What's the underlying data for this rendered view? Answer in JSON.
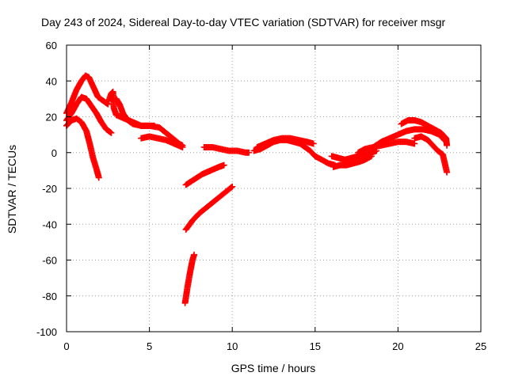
{
  "chart_data": {
    "type": "scatter",
    "title": "Day 243 of 2024, Sidereal Day-to-day VTEC variation (SDTVAR) for receiver msgr",
    "xlabel": "GPS time / hours",
    "ylabel": "SDTVAR / TECUs",
    "xlim": [
      0,
      25
    ],
    "ylim": [
      -100,
      60
    ],
    "xticks": [
      0,
      5,
      10,
      15,
      20,
      25
    ],
    "yticks": [
      -100,
      -80,
      -60,
      -40,
      -20,
      0,
      20,
      40,
      60
    ],
    "grid": true,
    "marker": "+",
    "color": "#ff0000",
    "series": [
      {
        "name": "trace-1",
        "points": [
          [
            0.0,
            22
          ],
          [
            0.3,
            28
          ],
          [
            0.6,
            35
          ],
          [
            0.9,
            40
          ],
          [
            1.15,
            43
          ],
          [
            1.35,
            42
          ],
          [
            1.6,
            37
          ],
          [
            1.9,
            31
          ],
          [
            2.2,
            29
          ],
          [
            2.5,
            27
          ]
        ]
      },
      {
        "name": "trace-2",
        "points": [
          [
            0.0,
            18
          ],
          [
            0.3,
            22
          ],
          [
            0.6,
            27
          ],
          [
            0.9,
            31
          ],
          [
            1.2,
            30
          ],
          [
            1.5,
            26
          ],
          [
            1.8,
            22
          ],
          [
            2.1,
            17
          ],
          [
            2.4,
            13
          ],
          [
            2.7,
            11
          ]
        ]
      },
      {
        "name": "trace-3",
        "points": [
          [
            0.0,
            15
          ],
          [
            0.3,
            18
          ],
          [
            0.6,
            19
          ],
          [
            0.9,
            17
          ],
          [
            1.2,
            12
          ],
          [
            1.4,
            5
          ],
          [
            1.6,
            -3
          ],
          [
            1.8,
            -9
          ],
          [
            1.95,
            -14
          ]
        ]
      },
      {
        "name": "trace-4",
        "points": [
          [
            2.55,
            29
          ],
          [
            2.7,
            33
          ],
          [
            2.8,
            34
          ],
          [
            2.85,
            25
          ],
          [
            3.0,
            21
          ],
          [
            3.5,
            19
          ],
          [
            4.0,
            17
          ],
          [
            4.5,
            15
          ],
          [
            5.0,
            15
          ],
          [
            5.3,
            15
          ]
        ]
      },
      {
        "name": "trace-5",
        "points": [
          [
            3.0,
            30
          ],
          [
            3.2,
            27
          ],
          [
            3.4,
            22
          ],
          [
            3.7,
            18
          ],
          [
            4.0,
            16
          ],
          [
            4.5,
            15
          ],
          [
            5.0,
            15
          ],
          [
            5.6,
            14
          ],
          [
            6.0,
            11
          ],
          [
            6.4,
            8
          ],
          [
            6.8,
            5
          ],
          [
            7.0,
            4
          ]
        ]
      },
      {
        "name": "trace-6",
        "points": [
          [
            4.5,
            8
          ],
          [
            5.0,
            9
          ],
          [
            5.5,
            8
          ],
          [
            6.0,
            7
          ],
          [
            6.5,
            5
          ],
          [
            7.0,
            3
          ]
        ]
      },
      {
        "name": "trace-7",
        "points": [
          [
            7.15,
            -84
          ],
          [
            7.3,
            -75
          ],
          [
            7.45,
            -67
          ],
          [
            7.6,
            -60
          ],
          [
            7.7,
            -57
          ]
        ]
      },
      {
        "name": "trace-8",
        "points": [
          [
            7.2,
            -43
          ],
          [
            7.6,
            -38
          ],
          [
            8.0,
            -34
          ],
          [
            8.4,
            -31
          ],
          [
            8.8,
            -28
          ],
          [
            9.2,
            -25
          ],
          [
            9.6,
            -22
          ],
          [
            10.0,
            -19
          ]
        ]
      },
      {
        "name": "trace-9",
        "points": [
          [
            7.2,
            -18
          ],
          [
            7.7,
            -15
          ],
          [
            8.2,
            -12
          ],
          [
            8.7,
            -10
          ],
          [
            9.2,
            -8
          ],
          [
            9.5,
            -7
          ]
        ]
      },
      {
        "name": "trace-10",
        "points": [
          [
            8.3,
            3
          ],
          [
            8.8,
            3
          ],
          [
            9.3,
            2
          ],
          [
            9.8,
            1
          ],
          [
            10.3,
            1
          ],
          [
            10.8,
            0
          ],
          [
            11.0,
            0
          ]
        ]
      },
      {
        "name": "trace-11",
        "points": [
          [
            11.3,
            1
          ],
          [
            11.7,
            2
          ],
          [
            12.1,
            4
          ],
          [
            12.5,
            6
          ],
          [
            12.9,
            7
          ],
          [
            13.3,
            7
          ],
          [
            13.7,
            6
          ],
          [
            14.1,
            5
          ],
          [
            14.4,
            3
          ],
          [
            14.7,
            1
          ],
          [
            15.0,
            -2
          ],
          [
            15.4,
            -4
          ],
          [
            15.8,
            -6
          ],
          [
            16.2,
            -7
          ]
        ]
      },
      {
        "name": "trace-12",
        "points": [
          [
            11.5,
            3
          ],
          [
            12.0,
            5
          ],
          [
            12.5,
            7
          ],
          [
            13.0,
            8
          ],
          [
            13.5,
            8
          ],
          [
            14.0,
            7
          ],
          [
            14.5,
            6
          ],
          [
            14.9,
            5
          ]
        ]
      },
      {
        "name": "trace-13",
        "points": [
          [
            16.0,
            -2
          ],
          [
            16.4,
            -3
          ],
          [
            16.8,
            -4
          ],
          [
            17.2,
            -3
          ],
          [
            17.6,
            -2
          ],
          [
            18.0,
            -1
          ],
          [
            18.4,
            0
          ],
          [
            18.7,
            1
          ]
        ]
      },
      {
        "name": "trace-14",
        "points": [
          [
            16.1,
            -8
          ],
          [
            16.5,
            -7
          ],
          [
            16.9,
            -7
          ],
          [
            17.3,
            -6
          ],
          [
            17.7,
            -5
          ],
          [
            18.0,
            -4
          ],
          [
            18.4,
            -2
          ]
        ]
      },
      {
        "name": "trace-15",
        "points": [
          [
            17.6,
            0
          ],
          [
            18.0,
            2
          ],
          [
            18.5,
            3
          ],
          [
            19.0,
            4
          ],
          [
            19.5,
            5
          ],
          [
            20.0,
            6
          ],
          [
            20.5,
            6
          ],
          [
            21.0,
            5
          ]
        ]
      },
      {
        "name": "trace-16",
        "points": [
          [
            18.5,
            3
          ],
          [
            19.0,
            6
          ],
          [
            19.5,
            8
          ],
          [
            20.0,
            10
          ],
          [
            20.5,
            12
          ],
          [
            21.0,
            13
          ],
          [
            21.5,
            13
          ],
          [
            22.0,
            12
          ],
          [
            22.5,
            10
          ],
          [
            22.8,
            7
          ]
        ]
      },
      {
        "name": "trace-17",
        "points": [
          [
            20.2,
            16
          ],
          [
            20.6,
            18
          ],
          [
            21.0,
            18
          ],
          [
            21.4,
            17
          ],
          [
            21.8,
            15
          ],
          [
            22.2,
            13
          ],
          [
            22.6,
            11
          ],
          [
            22.9,
            8
          ],
          [
            22.95,
            4
          ]
        ]
      },
      {
        "name": "trace-18",
        "points": [
          [
            21.0,
            8
          ],
          [
            21.4,
            9
          ],
          [
            21.8,
            7
          ],
          [
            22.1,
            4
          ],
          [
            22.4,
            1
          ],
          [
            22.7,
            -1
          ],
          [
            22.8,
            -5
          ],
          [
            22.9,
            -9
          ],
          [
            22.95,
            -11
          ]
        ]
      }
    ]
  }
}
